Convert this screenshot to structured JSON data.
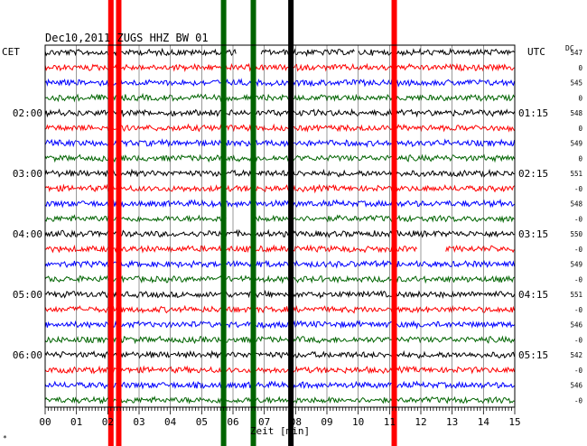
{
  "header": {
    "title": "Dec10,2011   ZUGS HHZ BW 01",
    "left_tz": "CET",
    "right_tz": "UTC",
    "dc_label": "DC",
    "corner_mark": "*"
  },
  "chart_data": {
    "type": "line",
    "title": "Dec10,2011   ZUGS HHZ BW 01",
    "xlabel": "Zeit [min]",
    "xlim": [
      0,
      15
    ],
    "x_ticks": [
      "00",
      "01",
      "02",
      "03",
      "04",
      "05",
      "06",
      "07",
      "08",
      "09",
      "10",
      "11",
      "12",
      "13",
      "14",
      "15"
    ],
    "trace_colors": [
      "#000000",
      "#ff0000",
      "#0000ff",
      "#006400"
    ],
    "trace_count": 24,
    "left_time_labels": [
      {
        "trace": 4,
        "text": "02:00"
      },
      {
        "trace": 8,
        "text": "03:00"
      },
      {
        "trace": 12,
        "text": "04:00"
      },
      {
        "trace": 16,
        "text": "05:00"
      },
      {
        "trace": 20,
        "text": "06:00"
      }
    ],
    "right_time_labels": [
      {
        "trace": 4,
        "text": "01:15"
      },
      {
        "trace": 8,
        "text": "02:15"
      },
      {
        "trace": 12,
        "text": "03:15"
      },
      {
        "trace": 16,
        "text": "04:15"
      },
      {
        "trace": 20,
        "text": "05:15"
      }
    ],
    "dc_values": [
      "547",
      "0",
      "545",
      "0",
      "548",
      "0",
      "549",
      "0",
      "551",
      "-0",
      "548",
      "-0",
      "550",
      "-0",
      "549",
      "-0",
      "551",
      "-0",
      "546",
      "-0",
      "542",
      "-0",
      "546",
      "-0"
    ],
    "gaps": [
      {
        "trace": 0,
        "from": 6.1,
        "to": 6.9
      },
      {
        "trace": 0,
        "from": 9.9,
        "to": 10.0
      },
      {
        "trace": 11,
        "from": 5.8,
        "to": 6.6
      },
      {
        "trace": 13,
        "from": 11.9,
        "to": 12.8
      }
    ],
    "vertical_markers": [
      {
        "x": 2.1,
        "color": "#ff0000"
      },
      {
        "x": 2.35,
        "color": "#ff0000"
      },
      {
        "x": 5.7,
        "color": "#006400"
      },
      {
        "x": 6.65,
        "color": "#006400"
      },
      {
        "x": 7.85,
        "color": "#000000"
      },
      {
        "x": 11.15,
        "color": "#ff0000"
      }
    ]
  }
}
